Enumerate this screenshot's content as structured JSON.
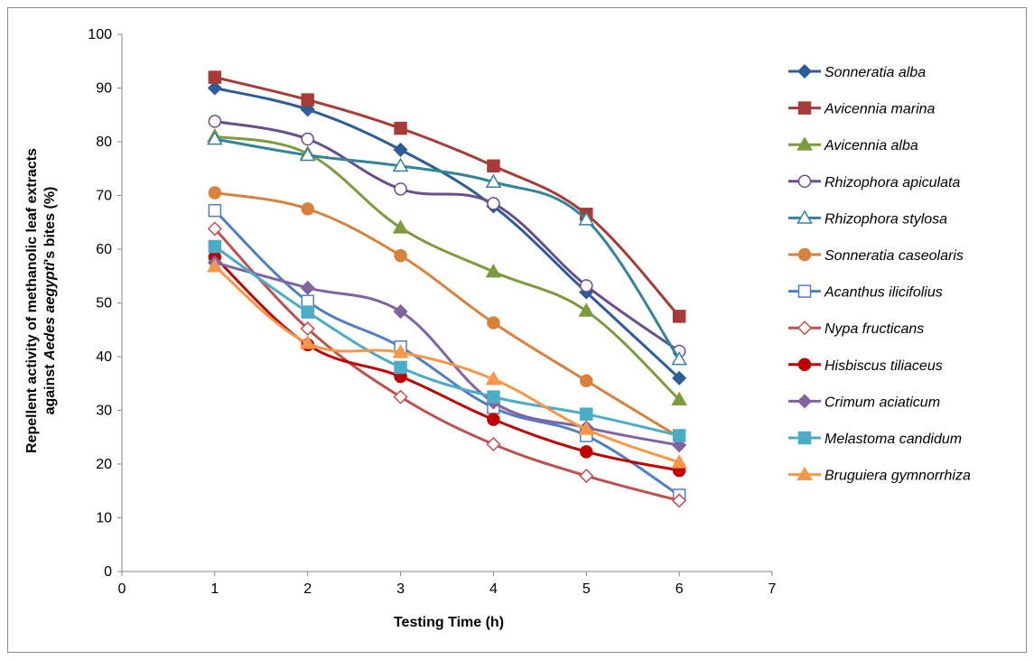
{
  "chart_data": {
    "type": "line",
    "x_axis": {
      "title": "Testing Time (h)",
      "ticks": [
        "0",
        "1",
        "2",
        "3",
        "4",
        "5",
        "6",
        "7"
      ],
      "range": [
        0,
        7
      ]
    },
    "y_axis": {
      "title_line1": "Repellent activity of methanolic leaf extracts",
      "title_line2_prefix": "against ",
      "title_line2_italic": "Aedes aegypti",
      "title_line2_suffix": "'s bites (%)",
      "ticks": [
        "0",
        "10",
        "20",
        "30",
        "40",
        "50",
        "60",
        "70",
        "80",
        "90",
        "100"
      ],
      "range": [
        0,
        100
      ]
    },
    "grid": false,
    "legend_position": "right",
    "x": [
      1,
      2,
      3,
      4,
      5,
      6
    ],
    "series": [
      {
        "name": "Sonneratia alba",
        "color": "#2e5c99",
        "marker": "diamond",
        "filled": true,
        "values": [
          90,
          86,
          78.5,
          68,
          52,
          36
        ]
      },
      {
        "name": "Avicennia marina",
        "color": "#a83a37",
        "marker": "square",
        "filled": true,
        "values": [
          92,
          87.8,
          82.5,
          75.5,
          66.5,
          47.5
        ]
      },
      {
        "name": "Avicennia alba",
        "color": "#7d9a3c",
        "marker": "triangle",
        "filled": true,
        "values": [
          81,
          77.8,
          64,
          55.8,
          48.5,
          32
        ]
      },
      {
        "name": "Rhizophora apiculata",
        "color": "#6a4e8c",
        "marker": "circle",
        "filled": false,
        "values": [
          83.8,
          80.5,
          71.2,
          68.5,
          53.2,
          41
        ]
      },
      {
        "name": "Rhizophora stylosa",
        "color": "#31849b",
        "marker": "triangle",
        "filled": false,
        "values": [
          80.5,
          77.5,
          75.5,
          72.5,
          65.5,
          39.5
        ]
      },
      {
        "name": "Sonneratia caseolaris",
        "color": "#d9813a",
        "marker": "circle",
        "filled": true,
        "values": [
          70.5,
          67.5,
          58.8,
          46.3,
          35.5,
          25
        ]
      },
      {
        "name": "Acanthus ilicifolius",
        "color": "#4f7fc5",
        "marker": "square",
        "filled": false,
        "values": [
          67.2,
          50.3,
          41.8,
          30.5,
          25.3,
          14.2
        ]
      },
      {
        "name": "Nypa fructicans",
        "color": "#c0504d",
        "marker": "diamond",
        "filled": false,
        "values": [
          63.8,
          45.2,
          32.5,
          23.7,
          17.8,
          13.2
        ]
      },
      {
        "name": "Hisbiscus tiliaceus",
        "color": "#c00000",
        "marker": "circle",
        "filled": true,
        "values": [
          58.5,
          42.2,
          36.3,
          28.3,
          22.3,
          18.8
        ]
      },
      {
        "name": "Crimum aciaticum",
        "color": "#8064a2",
        "marker": "diamond",
        "filled": true,
        "values": [
          57.5,
          52.8,
          48.4,
          31.5,
          26.8,
          23.5
        ]
      },
      {
        "name": "Melastoma candidum",
        "color": "#4bacc6",
        "marker": "square",
        "filled": true,
        "values": [
          60.5,
          48.3,
          38,
          32.5,
          29.3,
          25.3
        ]
      },
      {
        "name": "Bruguiera gymnorrhiza",
        "color": "#f79646",
        "marker": "triangle",
        "filled": true,
        "values": [
          56.8,
          42.5,
          40.8,
          35.8,
          26.5,
          20.3
        ]
      }
    ]
  }
}
